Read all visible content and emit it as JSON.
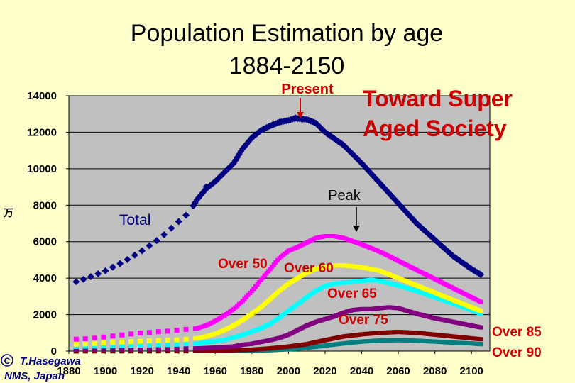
{
  "chart_data": {
    "type": "scatter",
    "title_line1": "Population Estimation by age",
    "title_line2": "1884-2150",
    "ylabel": "万",
    "xlim": [
      1880,
      2110
    ],
    "ylim": [
      0,
      14000
    ],
    "x_ticks": [
      "1880",
      "1900",
      "1920",
      "1940",
      "1960",
      "1980",
      "2000",
      "2020",
      "2040",
      "2060",
      "2080",
      "2100"
    ],
    "y_ticks": [
      "0",
      "2000",
      "4000",
      "6000",
      "8000",
      "10000",
      "12000",
      "14000"
    ],
    "grid": true,
    "annotations": {
      "headline_line1": "Toward Super",
      "headline_line2": "Aged Society",
      "present": "Present",
      "peak": "Peak"
    },
    "credit_line1": "T.Hasegawa",
    "credit_line2": "NMS, Japan",
    "copyright_symbol": "C",
    "series": [
      {
        "name": "Total",
        "label": "Total",
        "color": "#000080",
        "label_color": "#000080",
        "x": [
          1884,
          1890,
          1895,
          1900,
          1905,
          1910,
          1915,
          1920,
          1925,
          1930,
          1935,
          1940,
          1943,
          1944,
          1945,
          1946,
          1947,
          1950,
          1955,
          1960,
          1965,
          1970,
          1975,
          1980,
          1985,
          1990,
          1995,
          2000,
          2004,
          2005,
          2010,
          2015,
          2020,
          2030,
          2040,
          2050,
          2060,
          2070,
          2080,
          2090,
          2100,
          2105
        ],
        "y": [
          3800,
          4000,
          4200,
          4400,
          4650,
          4900,
          5200,
          5500,
          5850,
          6200,
          6650,
          7100,
          7200,
          7450,
          7200,
          7500,
          7800,
          8300,
          8900,
          9300,
          9800,
          10300,
          11100,
          11700,
          12100,
          12350,
          12550,
          12650,
          12780,
          12750,
          12700,
          12500,
          12000,
          11300,
          10300,
          9200,
          8100,
          7000,
          6100,
          5200,
          4500,
          4200
        ],
        "outliers": [
          [
            1955,
            9000
          ]
        ]
      },
      {
        "name": "Over 50",
        "label": "Over 50",
        "color": "#ff00ff",
        "label_color": "#cc0000",
        "x": [
          1884,
          1890,
          1895,
          1900,
          1905,
          1910,
          1915,
          1920,
          1925,
          1930,
          1935,
          1940,
          1945,
          1946,
          1950,
          1955,
          1960,
          1965,
          1970,
          1975,
          1980,
          1985,
          1990,
          1995,
          2000,
          2005,
          2010,
          2015,
          2020,
          2025,
          2030,
          2040,
          2050,
          2060,
          2070,
          2080,
          2090,
          2100,
          2105
        ],
        "y": [
          650,
          680,
          720,
          780,
          840,
          900,
          950,
          1000,
          1030,
          1070,
          1100,
          1150,
          1200,
          1200,
          1250,
          1400,
          1650,
          1950,
          2300,
          2750,
          3300,
          3900,
          4500,
          5100,
          5500,
          5700,
          5950,
          6200,
          6300,
          6300,
          6200,
          5850,
          5450,
          4950,
          4450,
          3950,
          3450,
          2950,
          2700
        ]
      },
      {
        "name": "Over 60",
        "label": "Over 60",
        "color": "#ffff00",
        "label_color": "#cc0000",
        "x": [
          1884,
          1890,
          1895,
          1900,
          1905,
          1910,
          1915,
          1920,
          1925,
          1930,
          1935,
          1940,
          1945,
          1950,
          1955,
          1960,
          1965,
          1970,
          1975,
          1980,
          1985,
          1990,
          1995,
          2000,
          2005,
          2010,
          2015,
          2020,
          2025,
          2030,
          2035,
          2040,
          2050,
          2060,
          2070,
          2080,
          2090,
          2100,
          2105
        ],
        "y": [
          380,
          400,
          420,
          450,
          480,
          500,
          520,
          540,
          560,
          580,
          600,
          620,
          650,
          700,
          800,
          950,
          1150,
          1400,
          1700,
          2050,
          2400,
          2850,
          3300,
          3700,
          4000,
          4300,
          4500,
          4600,
          4700,
          4700,
          4650,
          4600,
          4400,
          4000,
          3600,
          3200,
          2800,
          2400,
          2200
        ]
      },
      {
        "name": "Over 65",
        "label": "Over 65",
        "color": "#00ffff",
        "label_color": "#cc0000",
        "x": [
          1884,
          1890,
          1895,
          1900,
          1905,
          1910,
          1915,
          1920,
          1925,
          1930,
          1935,
          1940,
          1945,
          1950,
          1955,
          1960,
          1965,
          1970,
          1975,
          1980,
          1985,
          1990,
          1995,
          2000,
          2005,
          2010,
          2015,
          2020,
          2025,
          2030,
          2035,
          2040,
          2045,
          2050,
          2060,
          2070,
          2080,
          2090,
          2100,
          2105
        ],
        "y": [
          260,
          270,
          280,
          290,
          300,
          310,
          320,
          330,
          340,
          350,
          360,
          380,
          400,
          420,
          480,
          540,
          620,
          740,
          890,
          1070,
          1250,
          1490,
          1830,
          2200,
          2570,
          2950,
          3300,
          3560,
          3700,
          3750,
          3800,
          3850,
          3900,
          3850,
          3600,
          3300,
          2950,
          2600,
          2250,
          2050
        ]
      },
      {
        "name": "Over 75",
        "label": "Over 75",
        "color": "#800080",
        "label_color": "#cc0000",
        "x": [
          1884,
          1890,
          1900,
          1910,
          1920,
          1930,
          1940,
          1950,
          1960,
          1970,
          1975,
          1980,
          1985,
          1990,
          1995,
          2000,
          2005,
          2010,
          2015,
          2020,
          2025,
          2030,
          2035,
          2040,
          2045,
          2050,
          2055,
          2060,
          2070,
          2080,
          2090,
          2100,
          2105
        ],
        "y": [
          100,
          100,
          110,
          110,
          120,
          130,
          140,
          150,
          190,
          250,
          350,
          400,
          500,
          600,
          720,
          900,
          1150,
          1400,
          1600,
          1750,
          1900,
          2100,
          2250,
          2300,
          2300,
          2350,
          2400,
          2350,
          2050,
          1800,
          1600,
          1400,
          1300
        ]
      },
      {
        "name": "Over 85",
        "label": "Over 85",
        "color": "#800000",
        "label_color": "#cc0000",
        "x": [
          1884,
          1900,
          1920,
          1940,
          1960,
          1970,
          1980,
          1990,
          2000,
          2010,
          2020,
          2030,
          2040,
          2050,
          2060,
          2070,
          2080,
          2090,
          2100,
          2105
        ],
        "y": [
          10,
          20,
          20,
          20,
          30,
          50,
          80,
          150,
          250,
          380,
          600,
          800,
          920,
          1000,
          1050,
          1000,
          900,
          800,
          700,
          650
        ]
      },
      {
        "name": "Over 90",
        "label": "Over 90",
        "color": "#008080",
        "label_color": "#cc0000",
        "x": [
          1884,
          1900,
          1920,
          1940,
          1960,
          1980,
          1990,
          2000,
          2010,
          2020,
          2030,
          2040,
          2050,
          2060,
          2070,
          2080,
          2090,
          2100,
          2105
        ],
        "y": [
          5,
          5,
          5,
          10,
          10,
          20,
          50,
          100,
          180,
          300,
          420,
          520,
          580,
          600,
          570,
          520,
          460,
          420,
          380
        ]
      }
    ]
  }
}
